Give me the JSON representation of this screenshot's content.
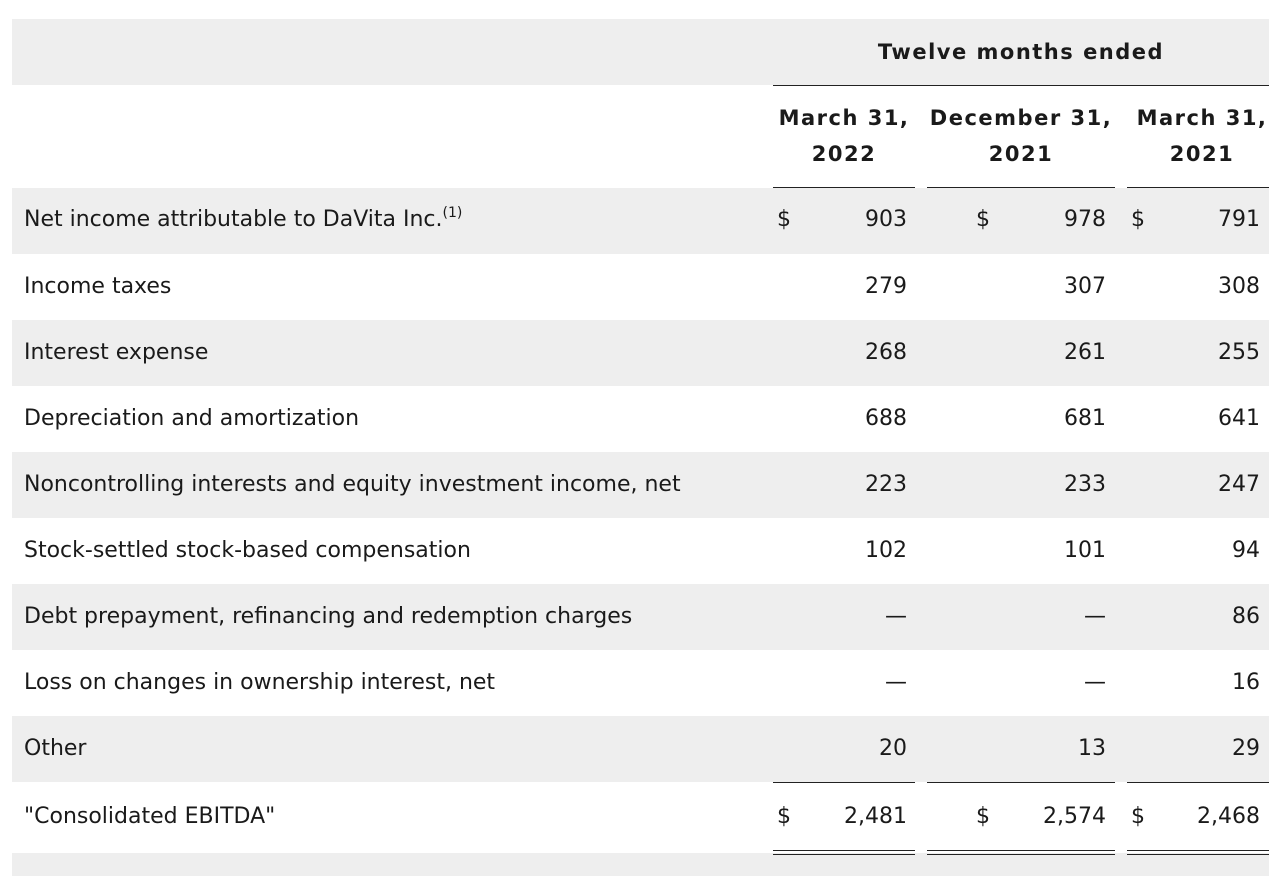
{
  "header": {
    "period_title": "Twelve months ended",
    "columns": [
      {
        "line1": "March 31,",
        "line2": "2022"
      },
      {
        "line1": "December 31,",
        "line2": "2021"
      },
      {
        "line1": "March 31,",
        "line2": "2021"
      }
    ]
  },
  "rows": [
    {
      "label": "Net income attributable to DaVita Inc.",
      "footnote": "(1)",
      "currency": "$",
      "values": [
        "903",
        "978",
        "791"
      ]
    },
    {
      "label": "Income taxes",
      "values": [
        "279",
        "307",
        "308"
      ]
    },
    {
      "label": "Interest expense",
      "values": [
        "268",
        "261",
        "255"
      ]
    },
    {
      "label": "Depreciation and amortization",
      "values": [
        "688",
        "681",
        "641"
      ]
    },
    {
      "label": "Noncontrolling interests and equity investment income, net",
      "values": [
        "223",
        "233",
        "247"
      ]
    },
    {
      "label": "Stock-settled stock-based compensation",
      "values": [
        "102",
        "101",
        "94"
      ]
    },
    {
      "label": "Debt prepayment, refinancing and redemption charges",
      "values": [
        "—",
        "—",
        "86"
      ]
    },
    {
      "label": "Loss on changes in ownership interest, net",
      "values": [
        "—",
        "—",
        "16"
      ]
    },
    {
      "label": "Other",
      "values": [
        "20",
        "13",
        "29"
      ]
    },
    {
      "label": "\"Consolidated EBITDA\"",
      "currency": "$",
      "values": [
        "2,481",
        "2,574",
        "2,468"
      ]
    }
  ],
  "colors": {
    "stripe": "#eeeeee",
    "text": "#1a1a1a",
    "rule": "#222222"
  }
}
